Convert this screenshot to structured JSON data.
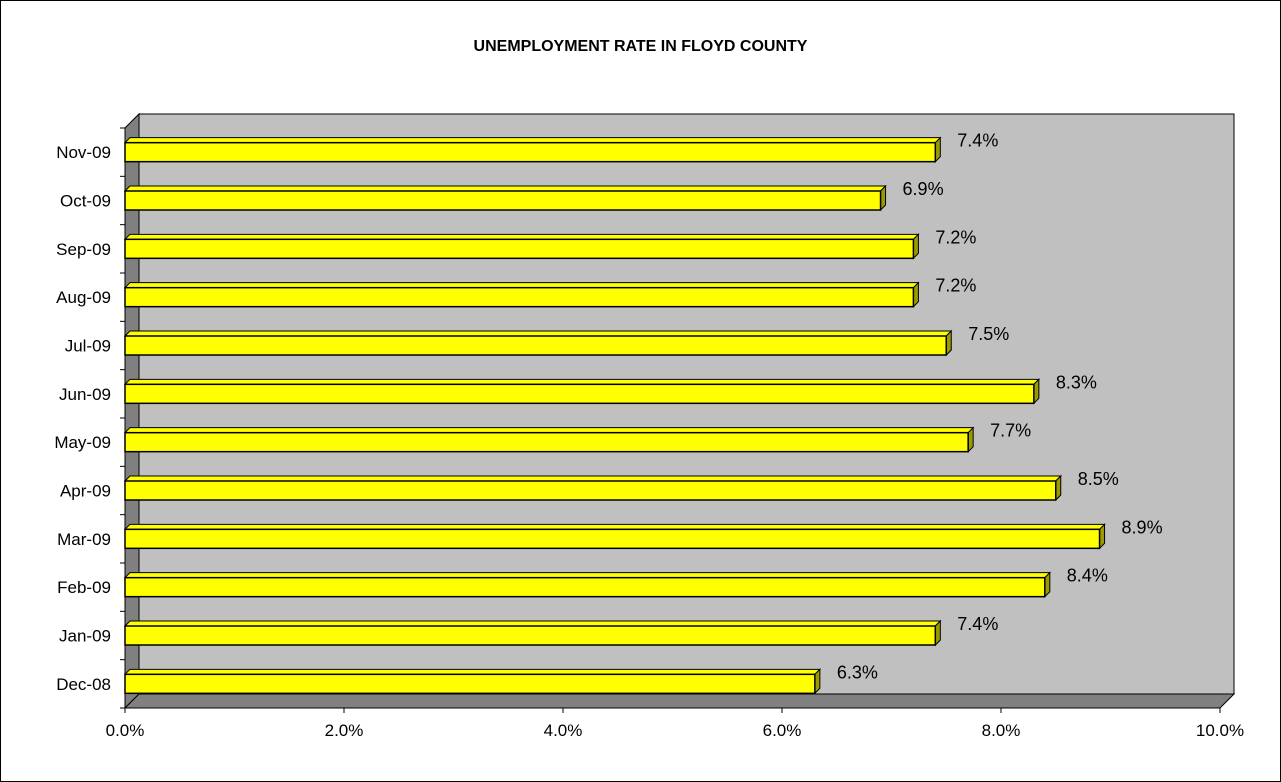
{
  "chart_data": {
    "type": "bar",
    "orientation": "horizontal",
    "title": "UNEMPLOYMENT RATE IN FLOYD COUNTY",
    "categories": [
      "Dec-08",
      "Jan-09",
      "Feb-09",
      "Mar-09",
      "Apr-09",
      "May-09",
      "Jun-09",
      "Jul-09",
      "Aug-09",
      "Sep-09",
      "Oct-09",
      "Nov-09"
    ],
    "values": [
      6.3,
      7.4,
      8.4,
      8.9,
      8.5,
      7.7,
      8.3,
      7.5,
      7.2,
      7.2,
      6.9,
      7.4
    ],
    "data_labels": [
      "6.3%",
      "7.4%",
      "8.4%",
      "8.9%",
      "8.5%",
      "7.7%",
      "8.3%",
      "7.5%",
      "7.2%",
      "7.2%",
      "6.9%",
      "7.4%"
    ],
    "x_ticks": [
      "0.0%",
      "2.0%",
      "4.0%",
      "6.0%",
      "8.0%",
      "10.0%"
    ],
    "xlim": [
      0,
      10
    ],
    "xlabel": "",
    "ylabel": "",
    "grid": false,
    "legend": "none",
    "style": "3d",
    "colors": {
      "bar": "#ffff00",
      "bar_side": "#9b9b00",
      "wall": "#c0c0c0",
      "wall_side": "#808080"
    }
  }
}
